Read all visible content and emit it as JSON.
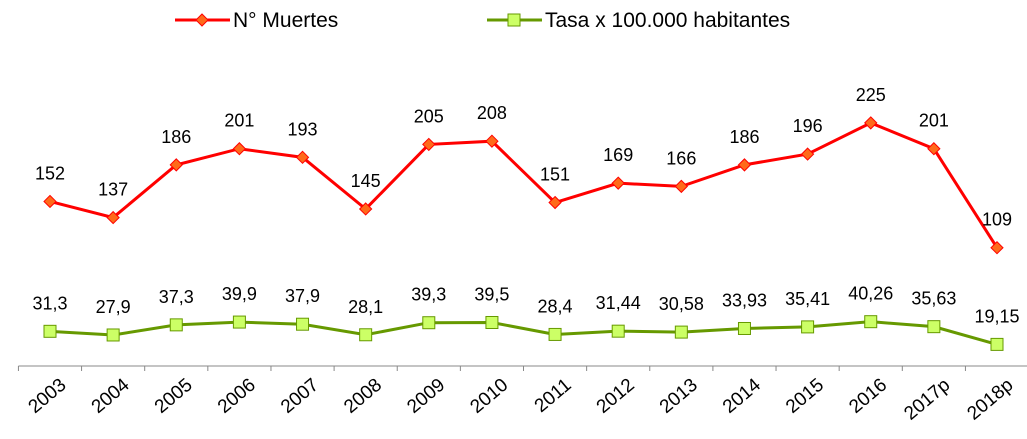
{
  "chart_data": {
    "type": "line",
    "categories": [
      "2003",
      "2004",
      "2005",
      "2006",
      "2007",
      "2008",
      "2009",
      "2010",
      "2011",
      "2012",
      "2013",
      "2014",
      "2015",
      "2016",
      "2017p",
      "2018p"
    ],
    "series": [
      {
        "name": "N° Muertes",
        "color": "#ff0000",
        "marker_color": "#ff6a1a",
        "marker": "diamond",
        "values": [
          152,
          137,
          186,
          201,
          193,
          145,
          205,
          208,
          151,
          169,
          166,
          186,
          196,
          225,
          201,
          109
        ]
      },
      {
        "name": "Tasa x 100.000 habitantes",
        "color": "#669900",
        "marker_color": "#ccff66",
        "marker": "square",
        "values": [
          31.3,
          27.9,
          37.3,
          39.9,
          37.9,
          28.1,
          39.3,
          39.5,
          28.4,
          31.44,
          30.58,
          33.93,
          35.41,
          40.26,
          35.63,
          19.15
        ],
        "value_labels": [
          "31,3",
          "27,9",
          "37,3",
          "39,9",
          "37,9",
          "28,1",
          "39,3",
          "39,5",
          "28,4",
          "31,44",
          "30,58",
          "33,93",
          "35,41",
          "40,26",
          "35,63",
          "19,15"
        ]
      }
    ],
    "ylim": [
      0,
      250
    ],
    "legend": "top"
  }
}
